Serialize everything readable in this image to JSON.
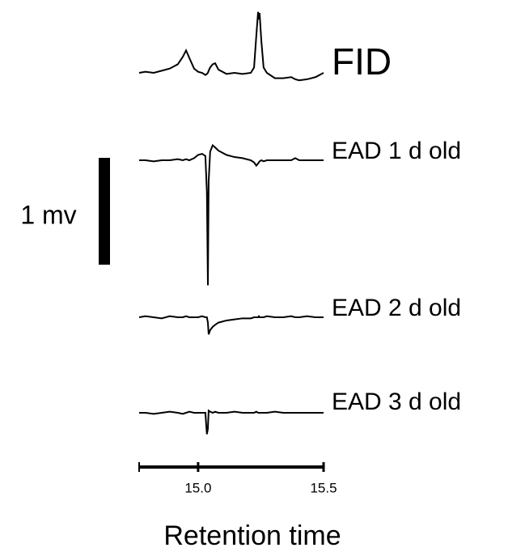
{
  "chart_data": {
    "type": "line",
    "x_label": "Retention time",
    "scale_bar": {
      "value": 1,
      "label": "1 mv"
    },
    "xlim": [
      14.765,
      15.5
    ],
    "xticks": [
      {
        "value": 15,
        "label": "15.0"
      },
      {
        "value": 15.5,
        "label": "15.5"
      }
    ],
    "x": [
      14.765,
      14.79,
      14.823,
      14.855,
      14.887,
      14.919,
      14.939,
      14.952,
      14.965,
      14.984,
      15.0,
      15.016,
      15.029,
      15.035,
      15.039,
      15.042,
      15.048,
      15.058,
      15.068,
      15.081,
      15.113,
      15.145,
      15.177,
      15.21,
      15.223,
      15.232,
      15.239,
      15.242,
      15.245,
      15.252,
      15.261,
      15.274,
      15.306,
      15.339,
      15.371,
      15.387,
      15.403,
      15.435,
      15.468,
      15.5
    ],
    "series": [
      {
        "name": "FID",
        "color": "#000000",
        "values": [
          0,
          0.01,
          0,
          0.02,
          0.04,
          0.08,
          0.15,
          0.21,
          0.14,
          0.04,
          0.01,
          0,
          -0.02,
          -0.01,
          0,
          0.02,
          0.05,
          0.08,
          0.09,
          0.03,
          -0.01,
          0,
          -0.01,
          0,
          0.05,
          0.35,
          0.57,
          0.5,
          0.56,
          0.3,
          0.05,
          0,
          -0.05,
          -0.05,
          -0.04,
          -0.06,
          -0.07,
          -0.06,
          -0.04,
          0
        ]
      },
      {
        "name": "EAD 1 d old",
        "color": "#000000",
        "values": [
          0,
          0,
          -0.01,
          0,
          0,
          0.01,
          0,
          0.01,
          0,
          0.02,
          0.05,
          0.06,
          0.04,
          -0.3,
          -1.17,
          -0.2,
          0.08,
          0.14,
          0.12,
          0.09,
          0.05,
          0.03,
          0.02,
          0,
          -0.02,
          -0.05,
          -0.03,
          -0.02,
          -0.01,
          0,
          -0.01,
          0,
          0,
          0,
          0,
          0.02,
          0,
          0,
          0,
          0
        ]
      },
      {
        "name": "EAD 2 d old",
        "color": "#000000",
        "values": [
          0,
          0.01,
          0,
          -0.01,
          0.01,
          0,
          0,
          0.01,
          0,
          0,
          0,
          0.01,
          0,
          0,
          -0.05,
          -0.16,
          -0.12,
          -0.09,
          -0.07,
          -0.05,
          -0.03,
          -0.02,
          -0.01,
          -0.01,
          0,
          0,
          0,
          0.01,
          0,
          0,
          0,
          0.01,
          0,
          0,
          0.01,
          0,
          0,
          0.01,
          0,
          0
        ]
      },
      {
        "name": "EAD 3 d old",
        "color": "#000000",
        "values": [
          0,
          0,
          -0.01,
          0,
          0.01,
          0,
          -0.01,
          0,
          0.01,
          0,
          0,
          0,
          0,
          -0.2,
          -0.15,
          0.02,
          0.01,
          0,
          0.01,
          0,
          0,
          0.01,
          0,
          0,
          0,
          0.01,
          0,
          0,
          0,
          0,
          0,
          0,
          0.01,
          0,
          0,
          0,
          0,
          0,
          0,
          0
        ]
      }
    ]
  }
}
